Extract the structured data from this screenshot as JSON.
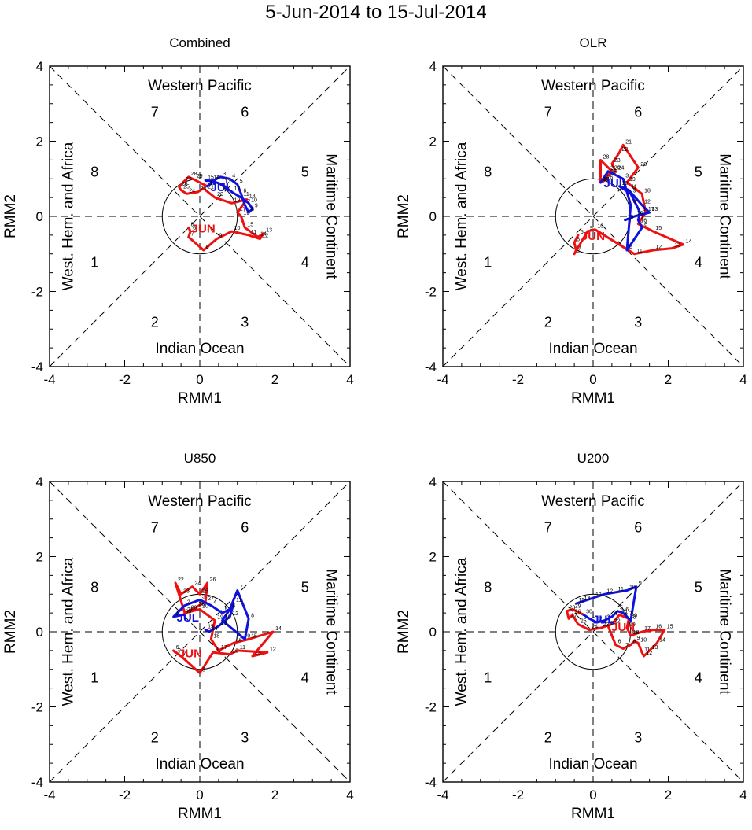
{
  "figure": {
    "title": "5-Jun-2014 to 15-Jul-2014",
    "colors": {
      "june": "#ee1111",
      "july": "#1111dd",
      "frame": "#000000"
    },
    "region_labels": {
      "top": "Western Pacific",
      "bottom": "Indian Ocean",
      "left": "West. Hem. and Africa",
      "right": "Maritime Continent"
    },
    "phase_numbers": [
      "1",
      "2",
      "3",
      "4",
      "5",
      "6",
      "7",
      "8"
    ]
  },
  "chart_data": [
    {
      "type": "line",
      "title": "Combined",
      "xlabel": "RMM1",
      "ylabel": "RMM2",
      "xlim": [
        -4,
        4
      ],
      "ylim": [
        -4,
        4
      ],
      "xticks": [
        "-4",
        "-2",
        "0",
        "2",
        "4"
      ],
      "yticks": [
        "-4",
        "-2",
        "0",
        "2",
        "4"
      ],
      "series": [
        {
          "name": "June",
          "month_label": "JUN",
          "color": "#ee1111",
          "days": [
            "5",
            "6",
            "7",
            "8",
            "9",
            "10",
            "11",
            "12",
            "13",
            "14",
            "15",
            "16",
            "17",
            "18",
            "19",
            "20",
            "21",
            "22",
            "23",
            "24",
            "25",
            "26",
            "27",
            "28",
            "29",
            "30"
          ],
          "x": [
            -0.3,
            -0.25,
            -0.3,
            0.1,
            0.45,
            0.85,
            1.3,
            1.6,
            1.7,
            1.55,
            1.2,
            1.1,
            1.0,
            1.25,
            0.85,
            0.4,
            0.15,
            0.1,
            -0.05,
            -0.35,
            -0.5,
            -0.55,
            -0.45,
            -0.3,
            -0.15,
            0.2
          ],
          "y": [
            -0.3,
            -0.4,
            -0.55,
            -0.9,
            -0.6,
            -0.4,
            -0.5,
            -0.6,
            -0.45,
            -0.55,
            -0.3,
            0.0,
            0.1,
            0.45,
            0.35,
            0.5,
            0.7,
            0.75,
            0.65,
            0.6,
            0.7,
            0.78,
            0.9,
            1.05,
            0.98,
            0.8
          ]
        },
        {
          "name": "July",
          "month_label": "JUL",
          "color": "#1111dd",
          "days": [
            "1",
            "2",
            "3",
            "4",
            "5",
            "6",
            "7",
            "8",
            "9",
            "10",
            "11",
            "12",
            "13",
            "14",
            "15"
          ],
          "x": [
            0.2,
            0.35,
            0.55,
            0.8,
            1.0,
            1.1,
            1.2,
            1.3,
            1.4,
            1.3,
            1.1,
            0.85,
            0.6,
            0.3,
            0.15
          ],
          "y": [
            0.8,
            0.95,
            1.05,
            1.0,
            0.85,
            0.6,
            0.3,
            0.1,
            0.2,
            0.35,
            0.5,
            0.65,
            0.85,
            0.95,
            0.95
          ]
        }
      ]
    },
    {
      "type": "line",
      "title": "OLR",
      "xlabel": "RMM1",
      "ylabel": "RMM2",
      "xlim": [
        -4,
        4
      ],
      "ylim": [
        -4,
        4
      ],
      "xticks": [
        "-4",
        "-2",
        "0",
        "2",
        "4"
      ],
      "yticks": [
        "-4",
        "-2",
        "0",
        "2",
        "4"
      ],
      "series": [
        {
          "name": "June",
          "month_label": "JUN",
          "color": "#ee1111",
          "days": [
            "5",
            "6",
            "7",
            "8",
            "9",
            "10",
            "11",
            "12",
            "13",
            "14",
            "15",
            "16",
            "17",
            "18",
            "19",
            "20",
            "21",
            "22",
            "23",
            "24",
            "25",
            "26",
            "27",
            "28",
            "29",
            "30"
          ],
          "x": [
            -0.4,
            -0.5,
            -0.45,
            -0.5,
            -0.15,
            0.05,
            1.1,
            1.6,
            2.1,
            2.4,
            1.6,
            1.2,
            1.4,
            1.3,
            0.9,
            1.2,
            0.8,
            0.7,
            0.5,
            0.6,
            0.4,
            0.3,
            0.2,
            0.2,
            0.5,
            0.2
          ],
          "y": [
            -0.5,
            -0.7,
            -0.9,
            -1.0,
            -0.4,
            -0.35,
            -1.0,
            -0.9,
            -0.85,
            -0.75,
            -0.4,
            -0.2,
            0.1,
            0.6,
            0.9,
            1.3,
            1.9,
            1.7,
            1.4,
            1.2,
            1.1,
            0.95,
            0.9,
            1.5,
            1.2,
            0.9
          ]
        },
        {
          "name": "July",
          "month_label": "JUL",
          "color": "#1111dd",
          "days": [
            "1",
            "2",
            "3",
            "4",
            "5",
            "6",
            "7",
            "8",
            "9",
            "10",
            "11",
            "12",
            "13",
            "14",
            "15"
          ],
          "x": [
            0.2,
            0.4,
            0.8,
            1.0,
            0.9,
            1.3,
            1.2,
            1.25,
            1.0,
            0.7,
            0.95,
            1.3,
            1.5,
            1.1,
            0.85
          ],
          "y": [
            0.9,
            1.2,
            1.0,
            0.3,
            -0.9,
            -0.3,
            -0.1,
            0.1,
            0.6,
            0.8,
            0.7,
            0.3,
            0.1,
            0.0,
            -0.1
          ]
        }
      ]
    },
    {
      "type": "line",
      "title": "U850",
      "xlabel": "RMM1",
      "ylabel": "RMM2",
      "xlim": [
        -4,
        4
      ],
      "ylim": [
        -4,
        4
      ],
      "xticks": [
        "-4",
        "-2",
        "0",
        "2",
        "4"
      ],
      "yticks": [
        "-4",
        "-2",
        "0",
        "2",
        "4"
      ],
      "series": [
        {
          "name": "June",
          "month_label": "JUN",
          "color": "#ee1111",
          "days": [
            "5",
            "6",
            "7",
            "8",
            "9",
            "10",
            "11",
            "12",
            "13",
            "14",
            "15",
            "16",
            "17",
            "18",
            "19",
            "20",
            "21",
            "22",
            "23",
            "24",
            "25",
            "26",
            "27",
            "28",
            "29",
            "30"
          ],
          "x": [
            -0.65,
            -0.7,
            -0.5,
            0.0,
            0.35,
            0.8,
            1.0,
            1.8,
            1.4,
            1.95,
            1.3,
            0.9,
            0.5,
            0.3,
            0.4,
            0.0,
            -0.4,
            -0.65,
            -0.5,
            -0.2,
            0.0,
            0.2,
            0.15,
            -0.1,
            -0.3,
            -0.45
          ],
          "y": [
            -0.55,
            -0.5,
            -0.65,
            -1.1,
            -0.55,
            -0.6,
            -0.5,
            -0.55,
            -0.65,
            0.0,
            -0.2,
            -0.3,
            -0.5,
            -0.2,
            0.3,
            0.6,
            0.5,
            1.3,
            1.0,
            1.2,
            1.0,
            1.3,
            0.8,
            0.65,
            0.55,
            0.45
          ]
        },
        {
          "name": "July",
          "month_label": "JUL",
          "color": "#1111dd",
          "days": [
            "1",
            "2",
            "3",
            "4",
            "5",
            "6",
            "7",
            "8",
            "9",
            "10",
            "11",
            "12",
            "13",
            "14",
            "15"
          ],
          "x": [
            -0.7,
            -0.4,
            0.0,
            0.3,
            0.6,
            0.8,
            1.0,
            1.3,
            1.2,
            0.6,
            0.9,
            0.8,
            0.5,
            0.25,
            0.15
          ],
          "y": [
            0.4,
            0.7,
            0.85,
            0.7,
            0.5,
            0.6,
            1.1,
            0.35,
            -0.2,
            0.3,
            0.75,
            0.4,
            0.15,
            0.0,
            0.05
          ]
        }
      ]
    },
    {
      "type": "line",
      "title": "U200",
      "xlabel": "RMM1",
      "ylabel": "RMM2",
      "xlim": [
        -4,
        4
      ],
      "ylim": [
        -4,
        4
      ],
      "xticks": [
        "-4",
        "-2",
        "0",
        "2",
        "4"
      ],
      "yticks": [
        "-4",
        "-2",
        "0",
        "2",
        "4"
      ],
      "series": [
        {
          "name": "June",
          "month_label": "JUN",
          "color": "#ee1111",
          "days": [
            "5",
            "6",
            "7",
            "8",
            "9",
            "10",
            "11",
            "12",
            "13",
            "14",
            "15",
            "16",
            "17",
            "18",
            "19",
            "20",
            "21",
            "22",
            "23",
            "24",
            "25",
            "26",
            "27",
            "28",
            "29",
            "30"
          ],
          "x": [
            0.4,
            0.6,
            0.8,
            1.0,
            1.1,
            1.2,
            1.3,
            1.35,
            1.5,
            1.7,
            1.9,
            1.6,
            1.3,
            1.0,
            0.9,
            0.95,
            0.7,
            0.5,
            0.2,
            -0.1,
            -0.4,
            -0.55,
            -0.65,
            -0.7,
            -0.55,
            -0.25
          ],
          "y": [
            0.15,
            -0.35,
            -0.45,
            -0.35,
            -0.25,
            -0.3,
            -0.55,
            -0.65,
            -0.5,
            -0.3,
            0.05,
            0.05,
            0.0,
            -0.1,
            0.1,
            0.35,
            0.45,
            0.2,
            0.1,
            0.05,
            0.2,
            0.45,
            0.35,
            0.55,
            0.6,
            0.45
          ]
        },
        {
          "name": "July",
          "month_label": "JUL",
          "color": "#1111dd",
          "days": [
            "1",
            "2",
            "3",
            "4",
            "5",
            "6",
            "7",
            "8",
            "9",
            "10",
            "11",
            "12",
            "13",
            "14",
            "15"
          ],
          "x": [
            -0.1,
            0.1,
            0.3,
            0.5,
            0.65,
            0.8,
            0.9,
            1.0,
            1.15,
            0.9,
            0.6,
            0.3,
            0.0,
            -0.3,
            -0.45
          ],
          "y": [
            0.35,
            0.25,
            0.3,
            0.4,
            0.55,
            0.5,
            0.4,
            0.3,
            1.2,
            1.1,
            1.05,
            1.0,
            0.9,
            0.8,
            0.75
          ]
        }
      ]
    }
  ]
}
